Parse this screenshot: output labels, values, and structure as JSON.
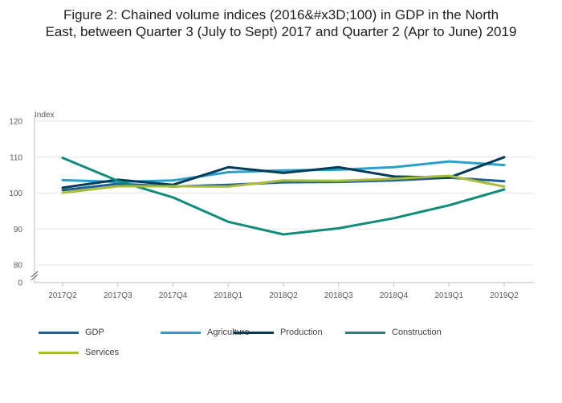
{
  "title_line1": "Figure 2: Chained volume indices (2016&#x3D;100) in GDP in the North",
  "title_line2": "East, between Quarter 3 (July to Sept) 2017 and Quarter 2 (Apr to June) 2019",
  "chart_data": {
    "type": "line",
    "title": "Figure 2: Chained volume indices (2016&#x3D;100) in GDP in the North East, between Quarter 3 (July to Sept) 2017 and Quarter 2 (Apr to June) 2019",
    "ylabel": "Index",
    "xlabel": "",
    "categories": [
      "2017Q2",
      "2017Q3",
      "2017Q4",
      "2018Q1",
      "2018Q2",
      "2018Q3",
      "2018Q4",
      "2019Q1",
      "2019Q2"
    ],
    "ylim": [
      80,
      120
    ],
    "y_axis_break": true,
    "yticks": [
      "0",
      "80",
      "90",
      "100",
      "110",
      "120"
    ],
    "grid": true,
    "legend_position": "bottom-left",
    "series": [
      {
        "name": "GDP",
        "color": "#206095",
        "values": [
          100.8,
          102.6,
          101.8,
          102.3,
          103.0,
          103.1,
          103.5,
          104.3,
          103.3
        ]
      },
      {
        "name": "Agriculture",
        "color": "#27a0cc",
        "values": [
          103.6,
          103.1,
          103.5,
          105.8,
          106.3,
          106.5,
          107.2,
          108.8,
          107.8
        ]
      },
      {
        "name": "Production",
        "color": "#003c57",
        "values": [
          101.5,
          103.7,
          102.3,
          107.2,
          105.6,
          107.2,
          104.6,
          104.3,
          110.0
        ]
      },
      {
        "name": "Construction",
        "color": "#118c7b",
        "values": [
          109.8,
          103.4,
          98.8,
          92.0,
          88.5,
          90.2,
          93.0,
          96.6,
          101.0
        ]
      },
      {
        "name": "Services",
        "color": "#a8bd3a",
        "values": [
          100.1,
          101.9,
          101.9,
          101.8,
          103.5,
          103.4,
          104.0,
          104.8,
          101.8
        ]
      }
    ]
  }
}
